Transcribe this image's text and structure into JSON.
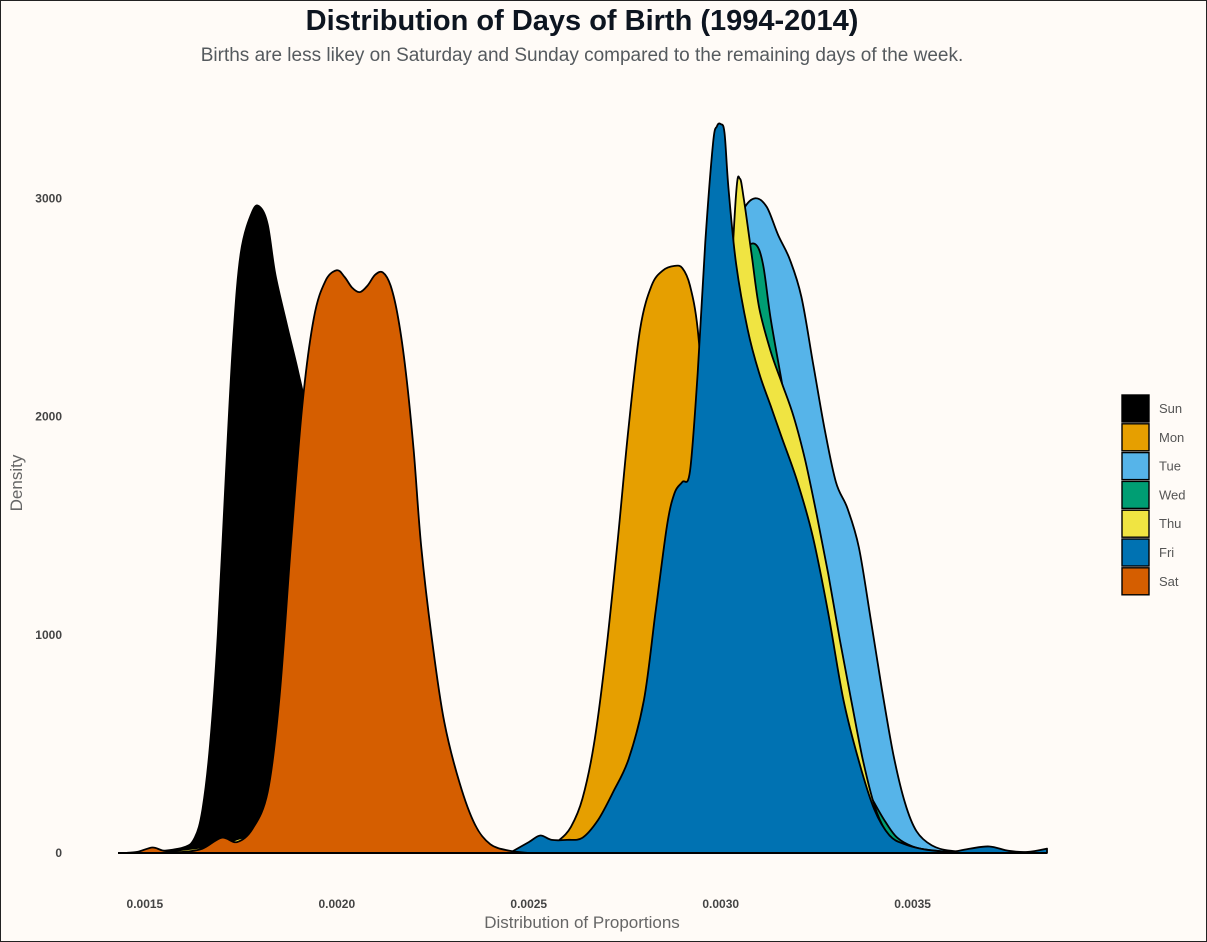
{
  "chart_data": {
    "type": "area",
    "title": "Distribution of Days of Birth (1994-2014)",
    "subtitle": "Births are less likey on Saturday and Sunday compared to the remaining days of the week.",
    "xlabel": "Distribution of Proportions",
    "ylabel": "Density",
    "xlim": [
      0.00143,
      0.00385
    ],
    "ylim": [
      0,
      3400
    ],
    "x_ticks": [
      0.0015,
      0.002,
      0.0025,
      0.003,
      0.0035
    ],
    "x_tick_labels": [
      "0.0015",
      "0.0020",
      "0.0025",
      "0.0030",
      "0.0035"
    ],
    "y_ticks": [
      0,
      1000,
      2000,
      3000
    ],
    "y_tick_labels": [
      "0",
      "1000",
      "2000",
      "3000"
    ],
    "grid": false,
    "legend_position": "right",
    "series": [
      {
        "name": "Sun",
        "color": "#000000",
        "points": [
          [
            0.00144,
            0
          ],
          [
            0.00152,
            5
          ],
          [
            0.0016,
            25
          ],
          [
            0.00163,
            70
          ],
          [
            0.00165,
            200
          ],
          [
            0.00167,
            500
          ],
          [
            0.00169,
            1000
          ],
          [
            0.00171,
            1700
          ],
          [
            0.00173,
            2350
          ],
          [
            0.00175,
            2750
          ],
          [
            0.00178,
            2940
          ],
          [
            0.0018,
            2960
          ],
          [
            0.00182,
            2880
          ],
          [
            0.00184,
            2650
          ],
          [
            0.00187,
            2420
          ],
          [
            0.0019,
            2200
          ],
          [
            0.00193,
            1950
          ],
          [
            0.00196,
            1600
          ],
          [
            0.002,
            1100
          ],
          [
            0.00205,
            600
          ],
          [
            0.0021,
            280
          ],
          [
            0.00215,
            110
          ],
          [
            0.0022,
            40
          ],
          [
            0.0023,
            8
          ],
          [
            0.0024,
            2
          ],
          [
            0.0025,
            0
          ]
        ]
      },
      {
        "name": "Mon",
        "color": "#E69F00",
        "points": [
          [
            0.00242,
            0
          ],
          [
            0.0025,
            5
          ],
          [
            0.00255,
            30
          ],
          [
            0.00258,
            60
          ],
          [
            0.00261,
            120
          ],
          [
            0.00264,
            250
          ],
          [
            0.00267,
            500
          ],
          [
            0.0027,
            900
          ],
          [
            0.00273,
            1400
          ],
          [
            0.00276,
            1950
          ],
          [
            0.00279,
            2400
          ],
          [
            0.00282,
            2600
          ],
          [
            0.00285,
            2670
          ],
          [
            0.00288,
            2690
          ],
          [
            0.0029,
            2680
          ],
          [
            0.00292,
            2600
          ],
          [
            0.00294,
            2400
          ],
          [
            0.00296,
            1950
          ],
          [
            0.00298,
            1350
          ],
          [
            0.003,
            800
          ],
          [
            0.00303,
            380
          ],
          [
            0.00306,
            150
          ],
          [
            0.0031,
            50
          ],
          [
            0.0032,
            10
          ],
          [
            0.0033,
            0
          ]
        ]
      },
      {
        "name": "Tue",
        "color": "#56B4E9",
        "points": [
          [
            0.00275,
            0
          ],
          [
            0.00285,
            30
          ],
          [
            0.0029,
            150
          ],
          [
            0.00294,
            600
          ],
          [
            0.00297,
            1400
          ],
          [
            0.003,
            2300
          ],
          [
            0.00303,
            2800
          ],
          [
            0.00306,
            2950
          ],
          [
            0.00309,
            3000
          ],
          [
            0.00312,
            2960
          ],
          [
            0.00315,
            2830
          ],
          [
            0.00318,
            2720
          ],
          [
            0.00321,
            2550
          ],
          [
            0.00324,
            2250
          ],
          [
            0.00327,
            1950
          ],
          [
            0.0033,
            1700
          ],
          [
            0.00333,
            1580
          ],
          [
            0.00336,
            1400
          ],
          [
            0.00339,
            1080
          ],
          [
            0.00342,
            750
          ],
          [
            0.00345,
            450
          ],
          [
            0.00348,
            230
          ],
          [
            0.00351,
            100
          ],
          [
            0.00355,
            35
          ],
          [
            0.0036,
            10
          ],
          [
            0.0037,
            0
          ]
        ]
      },
      {
        "name": "Wed",
        "color": "#009E73",
        "points": [
          [
            0.00275,
            0
          ],
          [
            0.00285,
            30
          ],
          [
            0.0029,
            150
          ],
          [
            0.00294,
            600
          ],
          [
            0.00297,
            1400
          ],
          [
            0.003,
            2300
          ],
          [
            0.00303,
            2650
          ],
          [
            0.00306,
            2760
          ],
          [
            0.00309,
            2790
          ],
          [
            0.00311,
            2700
          ],
          [
            0.00313,
            2450
          ],
          [
            0.00316,
            2150
          ],
          [
            0.00319,
            1850
          ],
          [
            0.00322,
            1600
          ],
          [
            0.00325,
            1380
          ],
          [
            0.00328,
            1100
          ],
          [
            0.00331,
            800
          ],
          [
            0.00334,
            520
          ],
          [
            0.00337,
            330
          ],
          [
            0.0034,
            230
          ],
          [
            0.00343,
            140
          ],
          [
            0.00346,
            70
          ],
          [
            0.0035,
            30
          ],
          [
            0.00355,
            10
          ],
          [
            0.00365,
            0
          ]
        ]
      },
      {
        "name": "Thu",
        "color": "#F0E442",
        "points": [
          [
            0.0015,
            0
          ],
          [
            0.0016,
            15
          ],
          [
            0.0017,
            40
          ],
          [
            0.00176,
            70
          ],
          [
            0.0018,
            30
          ],
          [
            0.00185,
            0
          ],
          [
            0.0028,
            0
          ],
          [
            0.00288,
            40
          ],
          [
            0.00293,
            200
          ],
          [
            0.00296,
            700
          ],
          [
            0.00299,
            1500
          ],
          [
            0.00302,
            2400
          ],
          [
            0.00304,
            3020
          ],
          [
            0.00305,
            3090
          ],
          [
            0.00306,
            3000
          ],
          [
            0.00308,
            2750
          ],
          [
            0.0031,
            2500
          ],
          [
            0.00313,
            2300
          ],
          [
            0.00316,
            2150
          ],
          [
            0.00319,
            2000
          ],
          [
            0.00322,
            1800
          ],
          [
            0.00325,
            1550
          ],
          [
            0.00328,
            1280
          ],
          [
            0.00331,
            980
          ],
          [
            0.00334,
            700
          ],
          [
            0.00337,
            430
          ],
          [
            0.0034,
            220
          ],
          [
            0.00343,
            100
          ],
          [
            0.00346,
            50
          ],
          [
            0.0035,
            25
          ],
          [
            0.0036,
            5
          ],
          [
            0.0037,
            0
          ]
        ]
      },
      {
        "name": "Fri",
        "color": "#0072B2",
        "points": [
          [
            0.00245,
            0
          ],
          [
            0.0025,
            50
          ],
          [
            0.00253,
            80
          ],
          [
            0.00256,
            60
          ],
          [
            0.0026,
            60
          ],
          [
            0.00264,
            70
          ],
          [
            0.00268,
            150
          ],
          [
            0.00272,
            280
          ],
          [
            0.00276,
            430
          ],
          [
            0.0028,
            700
          ],
          [
            0.00283,
            1100
          ],
          [
            0.00286,
            1500
          ],
          [
            0.00288,
            1650
          ],
          [
            0.0029,
            1700
          ],
          [
            0.00292,
            1750
          ],
          [
            0.00294,
            2200
          ],
          [
            0.00296,
            2800
          ],
          [
            0.00298,
            3250
          ],
          [
            0.00299,
            3330
          ],
          [
            0.003,
            3340
          ],
          [
            0.00301,
            3300
          ],
          [
            0.00302,
            3050
          ],
          [
            0.00304,
            2700
          ],
          [
            0.00307,
            2400
          ],
          [
            0.0031,
            2200
          ],
          [
            0.00313,
            2050
          ],
          [
            0.00316,
            1900
          ],
          [
            0.0032,
            1700
          ],
          [
            0.00324,
            1450
          ],
          [
            0.00328,
            1100
          ],
          [
            0.00332,
            700
          ],
          [
            0.00336,
            420
          ],
          [
            0.0034,
            200
          ],
          [
            0.00344,
            80
          ],
          [
            0.00348,
            40
          ],
          [
            0.00352,
            20
          ],
          [
            0.00356,
            10
          ],
          [
            0.0036,
            5
          ],
          [
            0.00365,
            20
          ],
          [
            0.0037,
            30
          ],
          [
            0.00375,
            10
          ],
          [
            0.0038,
            5
          ],
          [
            0.00385,
            20
          ]
        ]
      },
      {
        "name": "Sat",
        "color": "#D55E00",
        "points": [
          [
            0.00144,
            0
          ],
          [
            0.00148,
            5
          ],
          [
            0.00152,
            25
          ],
          [
            0.00155,
            10
          ],
          [
            0.0016,
            5
          ],
          [
            0.00165,
            20
          ],
          [
            0.0017,
            70
          ],
          [
            0.00174,
            50
          ],
          [
            0.00178,
            110
          ],
          [
            0.00182,
            280
          ],
          [
            0.00185,
            700
          ],
          [
            0.00188,
            1400
          ],
          [
            0.00191,
            2050
          ],
          [
            0.00194,
            2450
          ],
          [
            0.00197,
            2620
          ],
          [
            0.002,
            2670
          ],
          [
            0.00202,
            2640
          ],
          [
            0.00204,
            2590
          ],
          [
            0.00206,
            2570
          ],
          [
            0.00208,
            2600
          ],
          [
            0.0021,
            2650
          ],
          [
            0.00212,
            2660
          ],
          [
            0.00214,
            2600
          ],
          [
            0.00216,
            2450
          ],
          [
            0.00218,
            2200
          ],
          [
            0.0022,
            1850
          ],
          [
            0.00222,
            1400
          ],
          [
            0.00225,
            950
          ],
          [
            0.00228,
            600
          ],
          [
            0.00232,
            320
          ],
          [
            0.00236,
            130
          ],
          [
            0.0024,
            40
          ],
          [
            0.00245,
            10
          ],
          [
            0.0025,
            0
          ]
        ]
      }
    ]
  }
}
